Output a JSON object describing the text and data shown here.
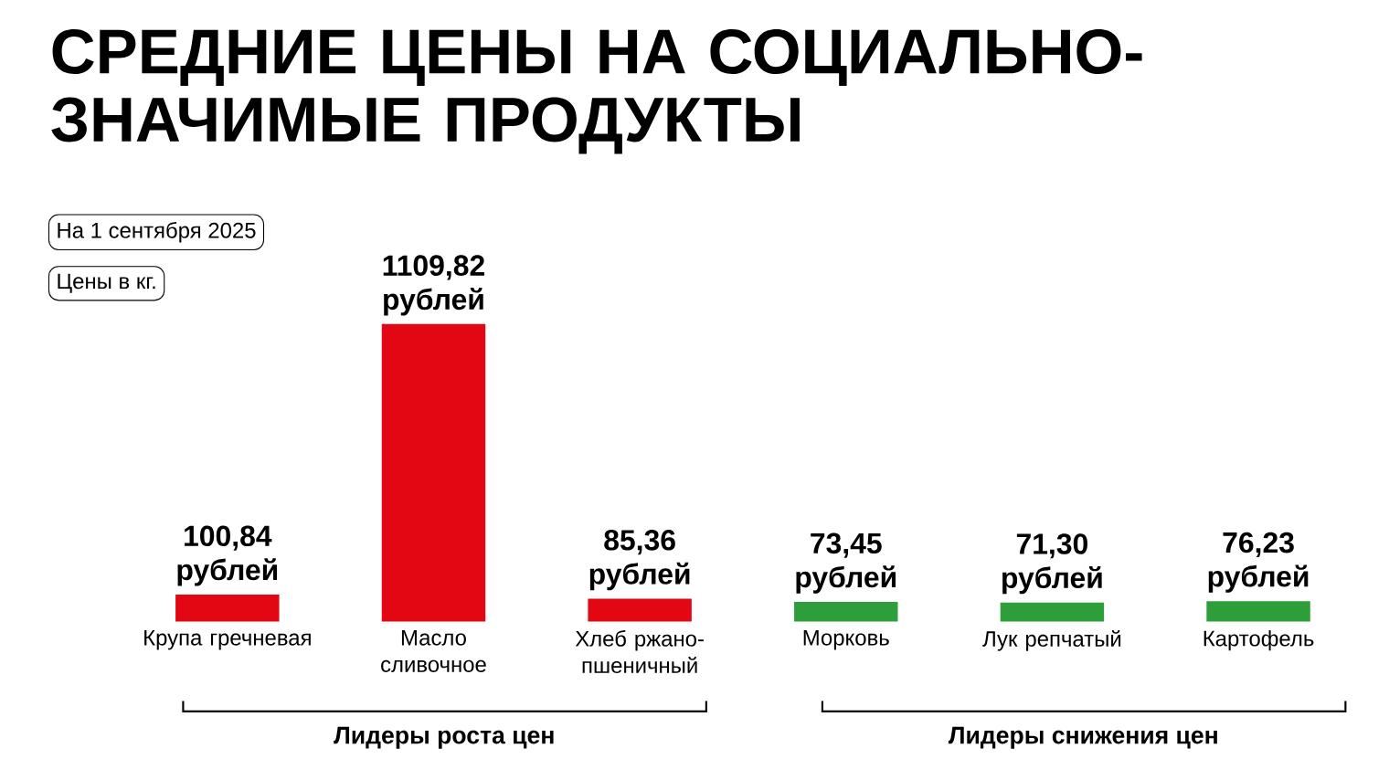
{
  "chart_data": {
    "type": "bar",
    "title": "СРЕДНИЕ ЦЕНЫ НА СОЦИАЛЬНО-ЗНАЧИМЫЕ ПРОДУКТЫ",
    "categories": [
      "Крупа гречневая",
      "Масло сливочное",
      "Хлеб ржано-пшеничный",
      "Морковь",
      "Лук репчатый",
      "Картофель"
    ],
    "values": [
      100.84,
      1109.82,
      85.36,
      73.45,
      71.3,
      76.23
    ],
    "value_labels": [
      "100,84 рублей",
      "1109,82 рублей",
      "85,36 рублей",
      "73,45 рублей",
      "71,30 рублей",
      "76,23 рублей"
    ],
    "colors": [
      "#e30613",
      "#e30613",
      "#e30613",
      "#2e9e3a",
      "#2e9e3a",
      "#2e9e3a"
    ],
    "annotations": [
      "На 1 сентября 2025",
      "Цены в кг.",
      "Лидеры роста цен",
      "Лидеры снижения цен"
    ]
  }
}
